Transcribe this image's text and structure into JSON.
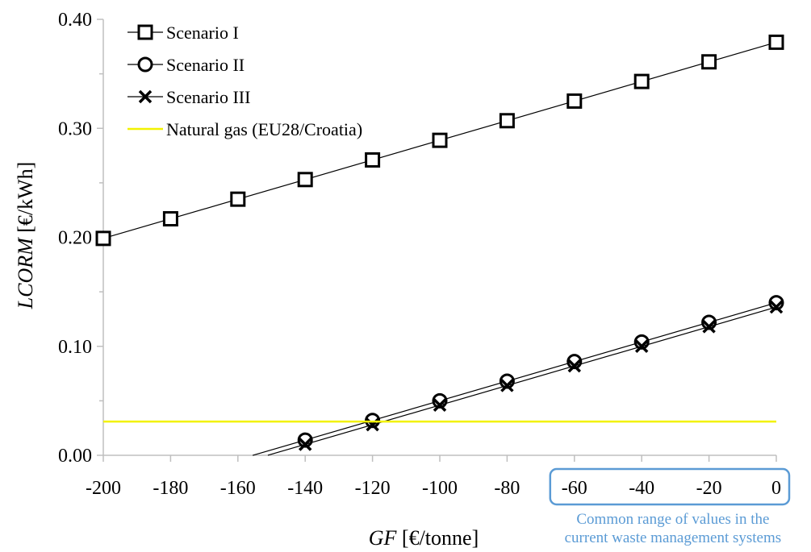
{
  "chart_data": {
    "type": "line",
    "title": "",
    "xlabel": {
      "var": "GF",
      "unit": " [€/tonne]"
    },
    "ylabel": {
      "var": "LCORM",
      "unit": " [€/kWh]"
    },
    "xlim": [
      -200,
      0
    ],
    "ylim": [
      0,
      0.4
    ],
    "grid": false,
    "legend_position": "top-left",
    "x_ticks": [
      "-200",
      "-180",
      "-160",
      "-140",
      "-120",
      "-100",
      "-80",
      "-60",
      "-40",
      "-20",
      "0"
    ],
    "y_ticks": [
      "0.00",
      "0.10",
      "0.20",
      "0.30",
      "0.40"
    ],
    "series": [
      {
        "name": "Scenario I",
        "marker": "square",
        "color": "#000000",
        "x": [
          -200,
          -180,
          -160,
          -140,
          -120,
          -100,
          -80,
          -60,
          -40,
          -20,
          0
        ],
        "y": [
          0.199,
          0.217,
          0.235,
          0.253,
          0.271,
          0.289,
          0.307,
          0.325,
          0.343,
          0.361,
          0.379
        ],
        "line_x": [
          -200,
          0
        ]
      },
      {
        "name": "Scenario II",
        "marker": "circle",
        "color": "#000000",
        "x": [
          -140,
          -120,
          -100,
          -80,
          -60,
          -40,
          -20,
          0
        ],
        "y": [
          0.014,
          0.032,
          0.05,
          0.068,
          0.086,
          0.104,
          0.122,
          0.14
        ],
        "line_x": [
          -155.6,
          0
        ]
      },
      {
        "name": "Scenario III",
        "marker": "x",
        "color": "#000000",
        "x": [
          -140,
          -120,
          -100,
          -80,
          -60,
          -40,
          -20,
          0
        ],
        "y": [
          0.01,
          0.028,
          0.046,
          0.064,
          0.082,
          0.1,
          0.118,
          0.136
        ],
        "line_x": [
          -151.1,
          0
        ]
      },
      {
        "name": "Natural gas (EU28/Croatia)",
        "marker": "none",
        "color": "#f2f200",
        "x": [
          -200,
          0
        ],
        "y": [
          0.031,
          0.031
        ]
      }
    ],
    "annotation": {
      "text_lines": [
        "Common range of values in the",
        "current waste management systems"
      ],
      "x_range": [
        -60,
        0
      ],
      "color": "#5b9bd5"
    }
  }
}
